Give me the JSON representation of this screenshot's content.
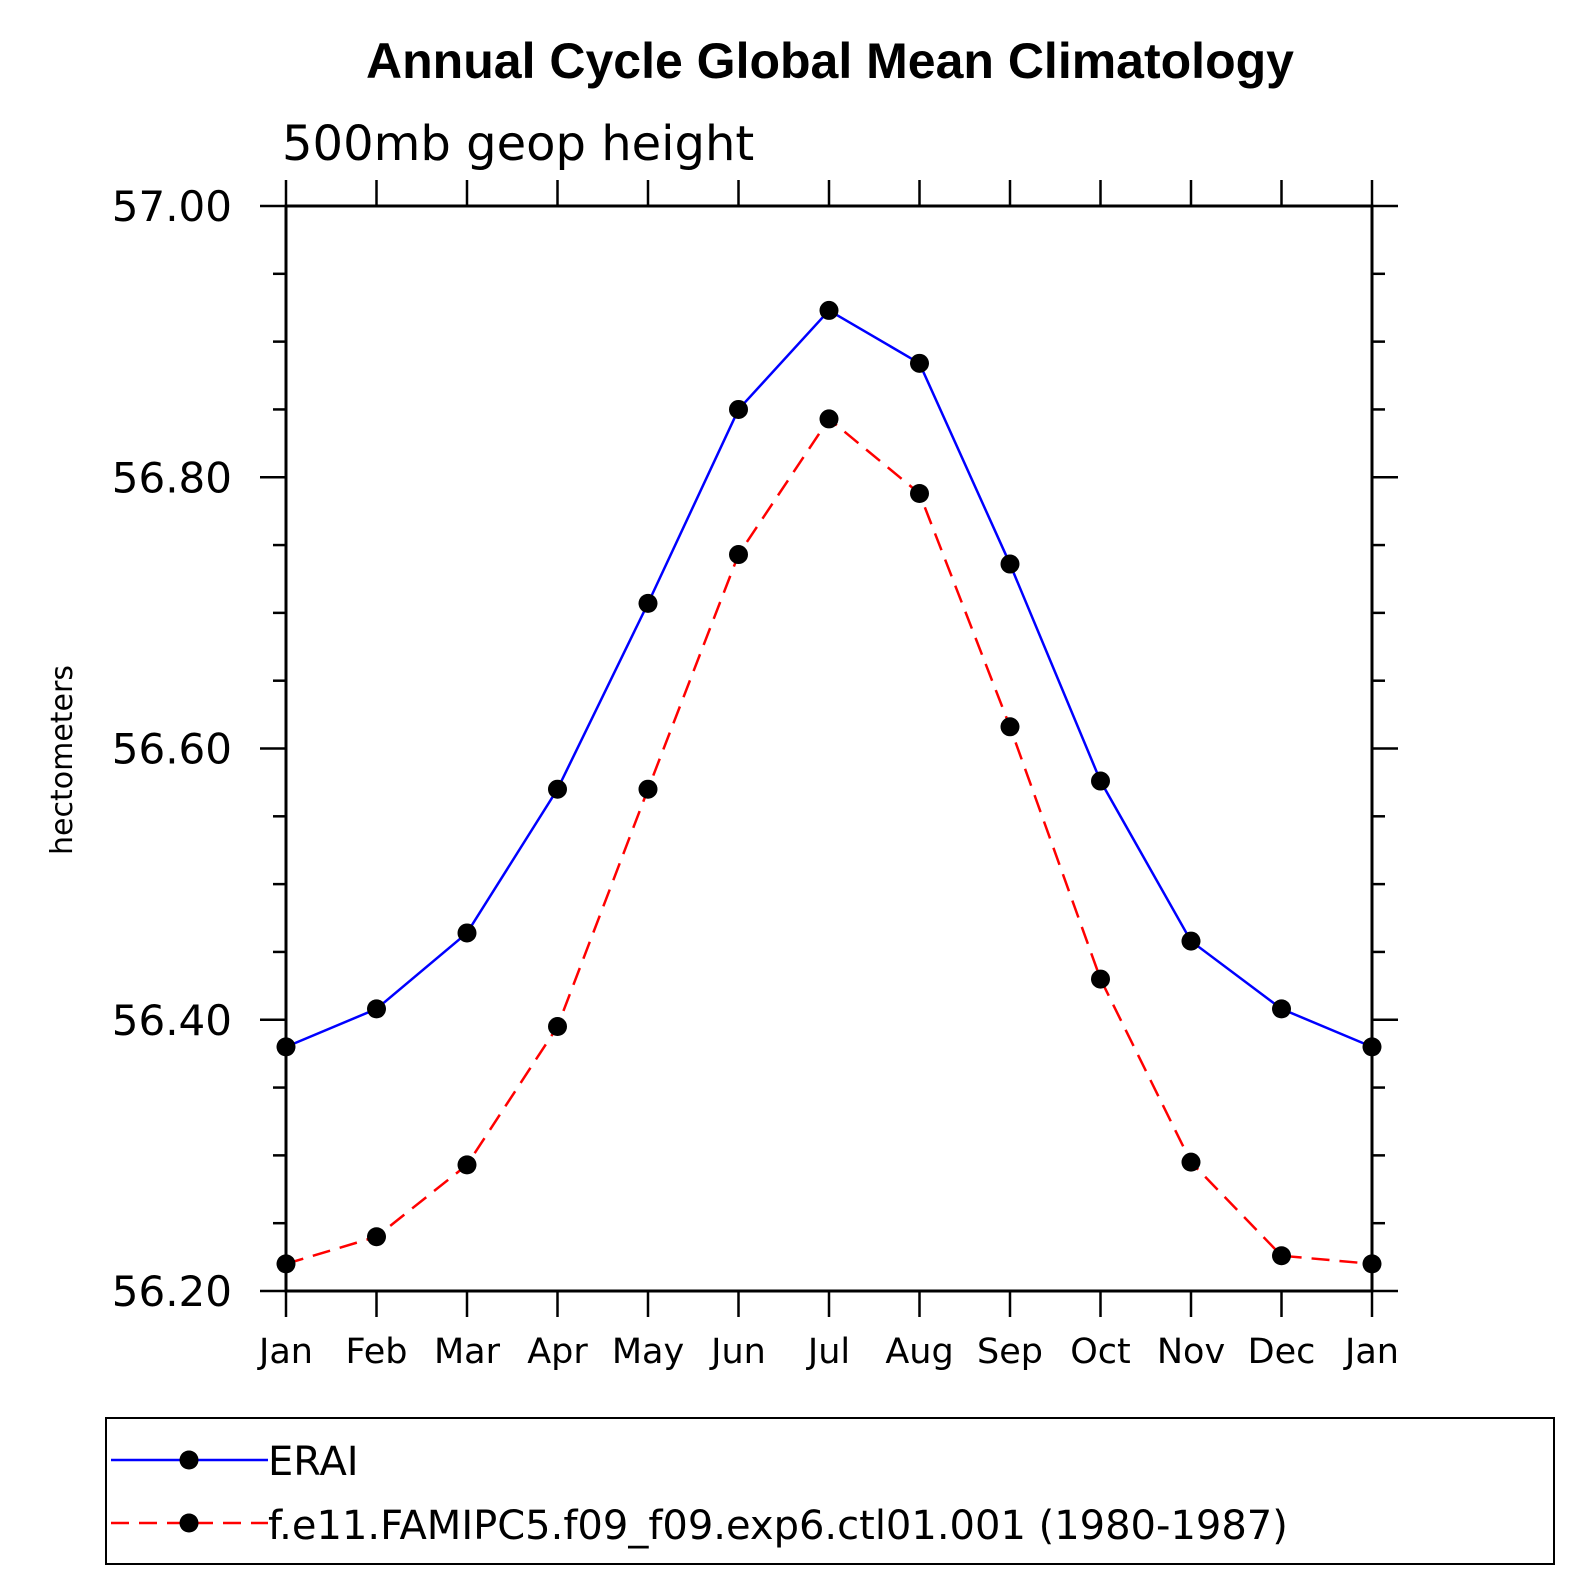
{
  "chart_data": {
    "type": "line",
    "title": "Annual Cycle Global Mean Climatology",
    "subtitle": "500mb geop height",
    "xlabel": "",
    "ylabel": "hectometers",
    "categories": [
      "Jan",
      "Feb",
      "Mar",
      "Apr",
      "May",
      "Jun",
      "Jul",
      "Aug",
      "Sep",
      "Oct",
      "Nov",
      "Dec",
      "Jan"
    ],
    "ylim": [
      56.2,
      57.0
    ],
    "yticks": [
      "56.20",
      "56.40",
      "56.60",
      "56.80",
      "57.00"
    ],
    "grid": false,
    "legend_position": "bottom",
    "series": [
      {
        "name": "ERAI",
        "color": "#0000ff",
        "dash": "solid",
        "marker": "filled-circle",
        "values": [
          56.38,
          56.408,
          56.464,
          56.57,
          56.707,
          56.85,
          56.923,
          56.884,
          56.736,
          56.576,
          56.458,
          56.408,
          56.38
        ]
      },
      {
        "name": "f.e11.FAMIPC5.f09_f09.exp6.ctl01.001 (1980-1987)",
        "color": "#ff0000",
        "dash": "dashed",
        "marker": "filled-circle",
        "values": [
          56.22,
          56.24,
          56.293,
          56.395,
          56.57,
          56.743,
          56.843,
          56.788,
          56.616,
          56.43,
          56.295,
          56.226,
          56.22
        ]
      }
    ]
  }
}
